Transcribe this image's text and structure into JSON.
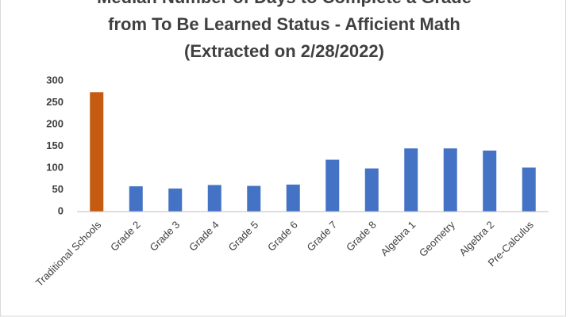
{
  "chart_data": {
    "type": "bar",
    "title": [
      "Median Number of Days to Complete a Grade",
      "from To Be Learned Status - Afficient Math",
      "(Extracted on 2/28/2022)"
    ],
    "categories": [
      "Traditional Schools",
      "Grade 2",
      "Grade 3",
      "Grade 4",
      "Grade 5",
      "Grade 6",
      "Grade 7",
      "Grade 8",
      "Algebra 1",
      "Geometry",
      "Algebra 2",
      "Pre-Calculus"
    ],
    "values": [
      274,
      58,
      53,
      61,
      59,
      62,
      119,
      99,
      145,
      145,
      140,
      101
    ],
    "colors": [
      "#c55a11",
      "#4472c4",
      "#4472c4",
      "#4472c4",
      "#4472c4",
      "#4472c4",
      "#4472c4",
      "#4472c4",
      "#4472c4",
      "#4472c4",
      "#4472c4",
      "#4472c4"
    ],
    "ylim": [
      0,
      300
    ],
    "yticks": [
      0,
      50,
      100,
      150,
      200,
      250,
      300
    ],
    "grid": false
  }
}
